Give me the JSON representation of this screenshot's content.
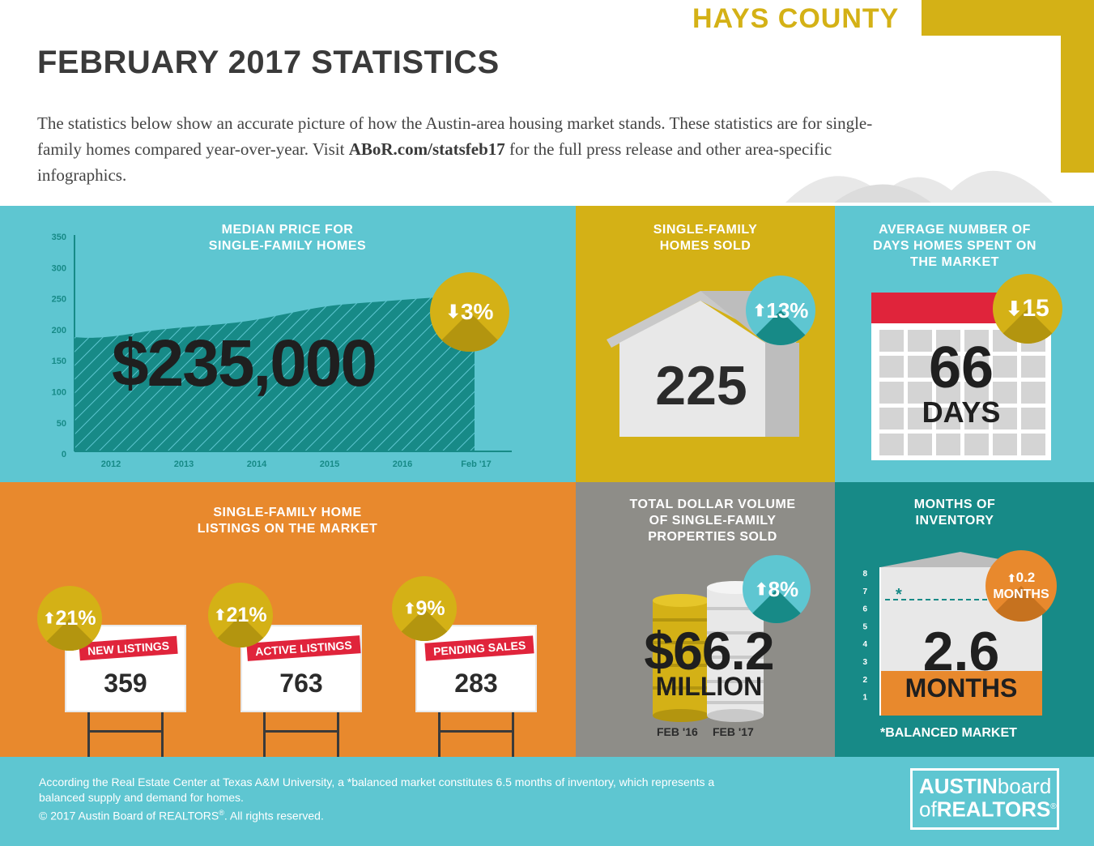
{
  "header": {
    "county": "HAYS COUNTY",
    "title": "FEBRUARY 2017 STATISTICS",
    "intro_part1": "The statistics below show an accurate picture of how the Austin-area housing market stands. These statistics are for single-family homes compared year-over-year. Visit ",
    "intro_link": "ABoR.com/statsfeb17",
    "intro_part2": " for the full press release and other area-specific infographics."
  },
  "median_price": {
    "title_line1": "MEDIAN PRICE FOR",
    "title_line2": "SINGLE-FAMILY HOMES",
    "value": "$235,000",
    "change": "3%",
    "change_direction": "down",
    "y_ticks": [
      "350",
      "300",
      "250",
      "200",
      "150",
      "100",
      "50",
      "0"
    ],
    "x_ticks": [
      "2012",
      "2013",
      "2014",
      "2015",
      "2016",
      "Feb '17"
    ]
  },
  "homes_sold": {
    "title_line1": "SINGLE-FAMILY",
    "title_line2": "HOMES SOLD",
    "value": "225",
    "change": "13%",
    "change_direction": "up"
  },
  "days_on_market": {
    "title_line1": "AVERAGE NUMBER OF",
    "title_line2": "DAYS HOMES SPENT ON",
    "title_line3": "THE MARKET",
    "value": "66",
    "unit": "DAYS",
    "change": "15",
    "change_direction": "down"
  },
  "listings": {
    "title_line1": "SINGLE-FAMILY HOME",
    "title_line2": "LISTINGS ON THE MARKET",
    "signs": [
      {
        "label": "NEW LISTINGS",
        "value": "359",
        "change": "21%"
      },
      {
        "label": "ACTIVE LISTINGS",
        "value": "763",
        "change": "21%"
      },
      {
        "label": "PENDING SALES",
        "value": "283",
        "change": "9%"
      }
    ]
  },
  "dollar_volume": {
    "title_line1": "TOTAL DOLLAR VOLUME",
    "title_line2": "OF SINGLE-FAMILY",
    "title_line3": "PROPERTIES SOLD",
    "value": "$66.2",
    "unit": "MILLION",
    "change": "8%",
    "change_direction": "up",
    "label_prev": "FEB '16",
    "label_curr": "FEB '17"
  },
  "inventory": {
    "title_line1": "MONTHS OF",
    "title_line2": "INVENTORY",
    "value": "2.6",
    "unit": "MONTHS",
    "change_line1": "0.2",
    "change_line2": "MONTHS",
    "change_direction": "up",
    "y_ticks": [
      "8",
      "7",
      "6",
      "5",
      "4",
      "3",
      "2",
      "1"
    ],
    "balanced_marker": "*",
    "balanced_label": "*BALANCED MARKET"
  },
  "footer": {
    "note": "According the Real Estate Center at Texas A&M University, a *balanced market constitutes 6.5 months of inventory, which represents a balanced supply and demand for homes.",
    "copyright_prefix": "© 2017  Austin Board of REALTORS",
    "copyright_reg": "®",
    "copyright_suffix": ". All rights reserved.",
    "logo_line1a": "AUSTIN",
    "logo_line1b": "board",
    "logo_line2a": "of",
    "logo_line2b": "REALTORS",
    "logo_reg": "®"
  },
  "colors": {
    "teal": "#5ec6d1",
    "gold": "#d4b116",
    "orange": "#e8892d",
    "gray": "#8e8d88",
    "dark_teal": "#178a87",
    "red": "#e0243b"
  }
}
